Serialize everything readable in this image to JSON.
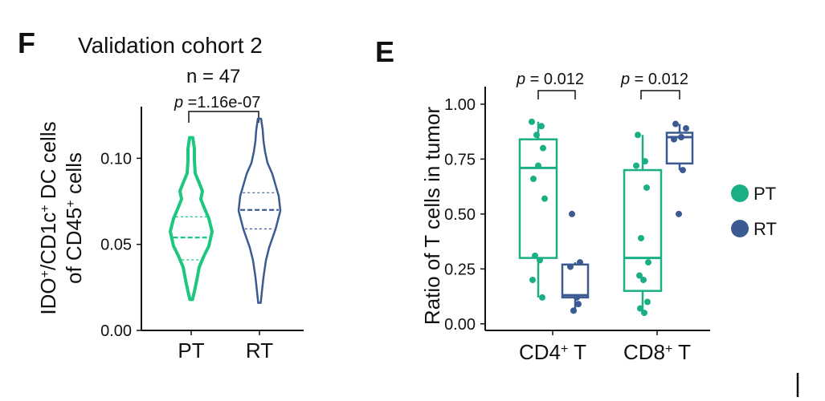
{
  "colors": {
    "pt": "#1aaf85",
    "rt": "#3b5a91",
    "pt_violin": "#1dc77f",
    "axis": "#111111"
  },
  "chart_data": [
    {
      "type": "violin",
      "panel": "F",
      "title": "Validation cohort 2",
      "subtitle": "n = 47",
      "pvalue": {
        "prefix": "p",
        "value": " =1.16e-07"
      },
      "ylabel_parts": [
        "IDO",
        "+",
        "/CD1c",
        "+",
        " DC cells"
      ],
      "ylabel2_parts": [
        "of CD45",
        "+",
        " cells"
      ],
      "ylim": [
        0,
        0.13
      ],
      "yticks": [
        {
          "value": 0.0,
          "label": "0.00"
        },
        {
          "value": 0.05,
          "label": "0.05"
        },
        {
          "value": 0.1,
          "label": "0.10"
        }
      ],
      "categories": [
        "PT",
        "RT"
      ],
      "series": [
        {
          "name": "PT",
          "min": 0.018,
          "max": 0.112,
          "q1": 0.041,
          "median": 0.054,
          "q3": 0.066
        },
        {
          "name": "RT",
          "min": 0.016,
          "max": 0.123,
          "q1": 0.059,
          "median": 0.07,
          "q3": 0.08
        }
      ]
    },
    {
      "type": "box",
      "panel": "E",
      "ylabel": "Ratio of T cells in tumor",
      "ylim": [
        -0.03,
        1.08
      ],
      "yticks": [
        {
          "value": 0.0,
          "label": "0.00"
        },
        {
          "value": 0.25,
          "label": "0.25"
        },
        {
          "value": 0.5,
          "label": "0.50"
        },
        {
          "value": 0.75,
          "label": "0.75"
        },
        {
          "value": 1.0,
          "label": "1.00"
        }
      ],
      "categories": [
        {
          "base": "CD4",
          "sup": "+",
          "tail": " T"
        },
        {
          "base": "CD8",
          "sup": "+",
          "tail": " T"
        }
      ],
      "pvalues": [
        {
          "prefix": "p",
          "value": " = 0.012"
        },
        {
          "prefix": "p",
          "value": " = 0.012"
        }
      ],
      "legend": [
        "PT",
        "RT"
      ],
      "series": [
        {
          "name": "PT",
          "groups": [
            {
              "q1": 0.3,
              "median": 0.71,
              "q3": 0.84,
              "whisker_low": 0.12,
              "whisker_high": 0.92,
              "points": [
                0.92,
                0.9,
                0.86,
                0.8,
                0.72,
                0.66,
                0.57,
                0.31,
                0.29,
                0.2,
                0.12
              ]
            },
            {
              "q1": 0.15,
              "median": 0.3,
              "q3": 0.7,
              "whisker_low": 0.05,
              "whisker_high": 0.86,
              "points": [
                0.86,
                0.74,
                0.72,
                0.62,
                0.39,
                0.28,
                0.22,
                0.2,
                0.1,
                0.07,
                0.05
              ]
            }
          ]
        },
        {
          "name": "RT",
          "groups": [
            {
              "q1": 0.12,
              "median": 0.13,
              "q3": 0.27,
              "whisker_low": 0.06,
              "whisker_high": 0.28,
              "points": [
                0.5,
                0.28,
                0.26,
                0.12,
                0.09,
                0.06
              ]
            },
            {
              "q1": 0.73,
              "median": 0.85,
              "q3": 0.87,
              "whisker_low": 0.7,
              "whisker_high": 0.91,
              "points": [
                0.91,
                0.89,
                0.85,
                0.84,
                0.7,
                0.5
              ]
            }
          ]
        }
      ]
    }
  ]
}
